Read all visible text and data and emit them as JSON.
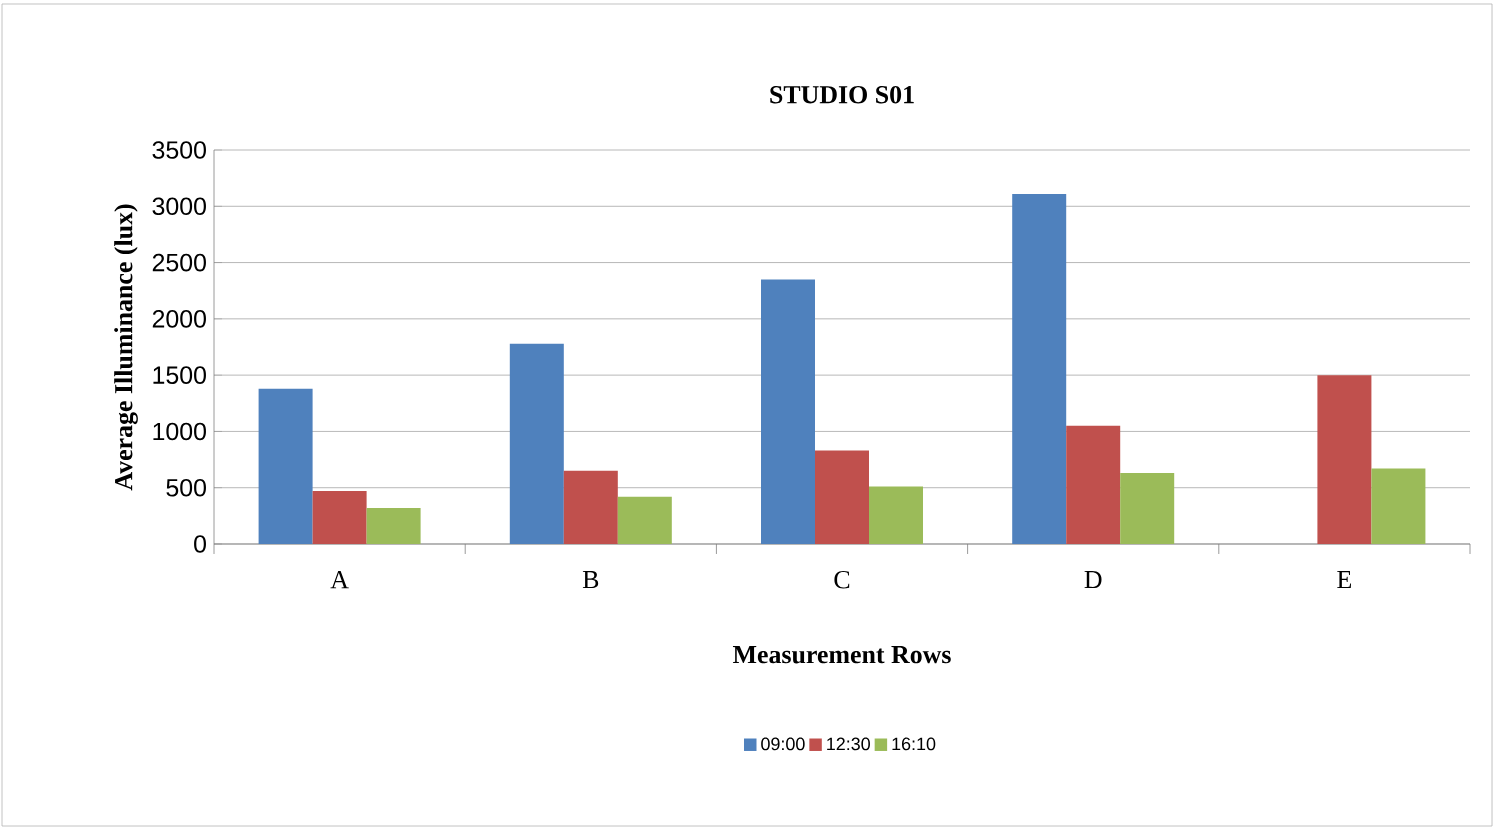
{
  "chart_data": {
    "type": "bar",
    "title": "STUDIO S01",
    "xlabel": "Measurement Rows",
    "ylabel": "Average Illuminance (lux)",
    "categories": [
      "A",
      "B",
      "C",
      "D",
      "E"
    ],
    "series": [
      {
        "name": "09:00",
        "color": "#4f81bd",
        "values": [
          1380,
          1780,
          2350,
          3110,
          null
        ]
      },
      {
        "name": "12:30",
        "color": "#c0504d",
        "values": [
          470,
          650,
          830,
          1050,
          1500
        ]
      },
      {
        "name": "16:10",
        "color": "#9bbb59",
        "values": [
          320,
          420,
          510,
          630,
          670
        ]
      }
    ],
    "ylim": [
      0,
      3500
    ],
    "yticks": [
      0,
      500,
      1000,
      1500,
      2000,
      2500,
      3000,
      3500
    ],
    "grid": "y",
    "legend": "bottom"
  }
}
